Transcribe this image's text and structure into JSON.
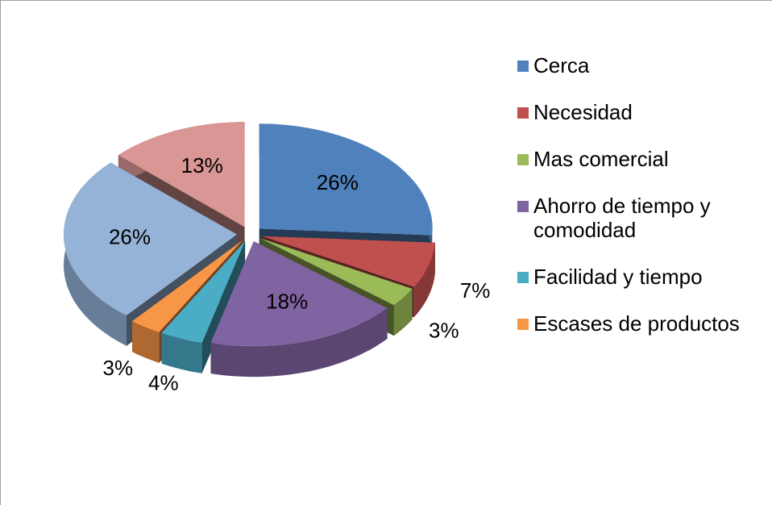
{
  "chart_data": {
    "type": "pie3d",
    "categories": [
      "Cerca",
      "Necesidad",
      "Mas comercial",
      "Ahorro de tiempo y comodidad",
      "Facilidad y tiempo",
      "Escases de productos",
      null,
      null
    ],
    "values": [
      26,
      7,
      3,
      18,
      4,
      3,
      26,
      13
    ],
    "value_labels": [
      "26%",
      "7%",
      "3%",
      "18%",
      "4%",
      "3%",
      "26%",
      "13%"
    ],
    "colors": [
      "#4f81bd",
      "#c0504d",
      "#9bbb59",
      "#8064a2",
      "#4bacc6",
      "#f79646",
      "#95b3d7",
      "#d99694"
    ]
  }
}
